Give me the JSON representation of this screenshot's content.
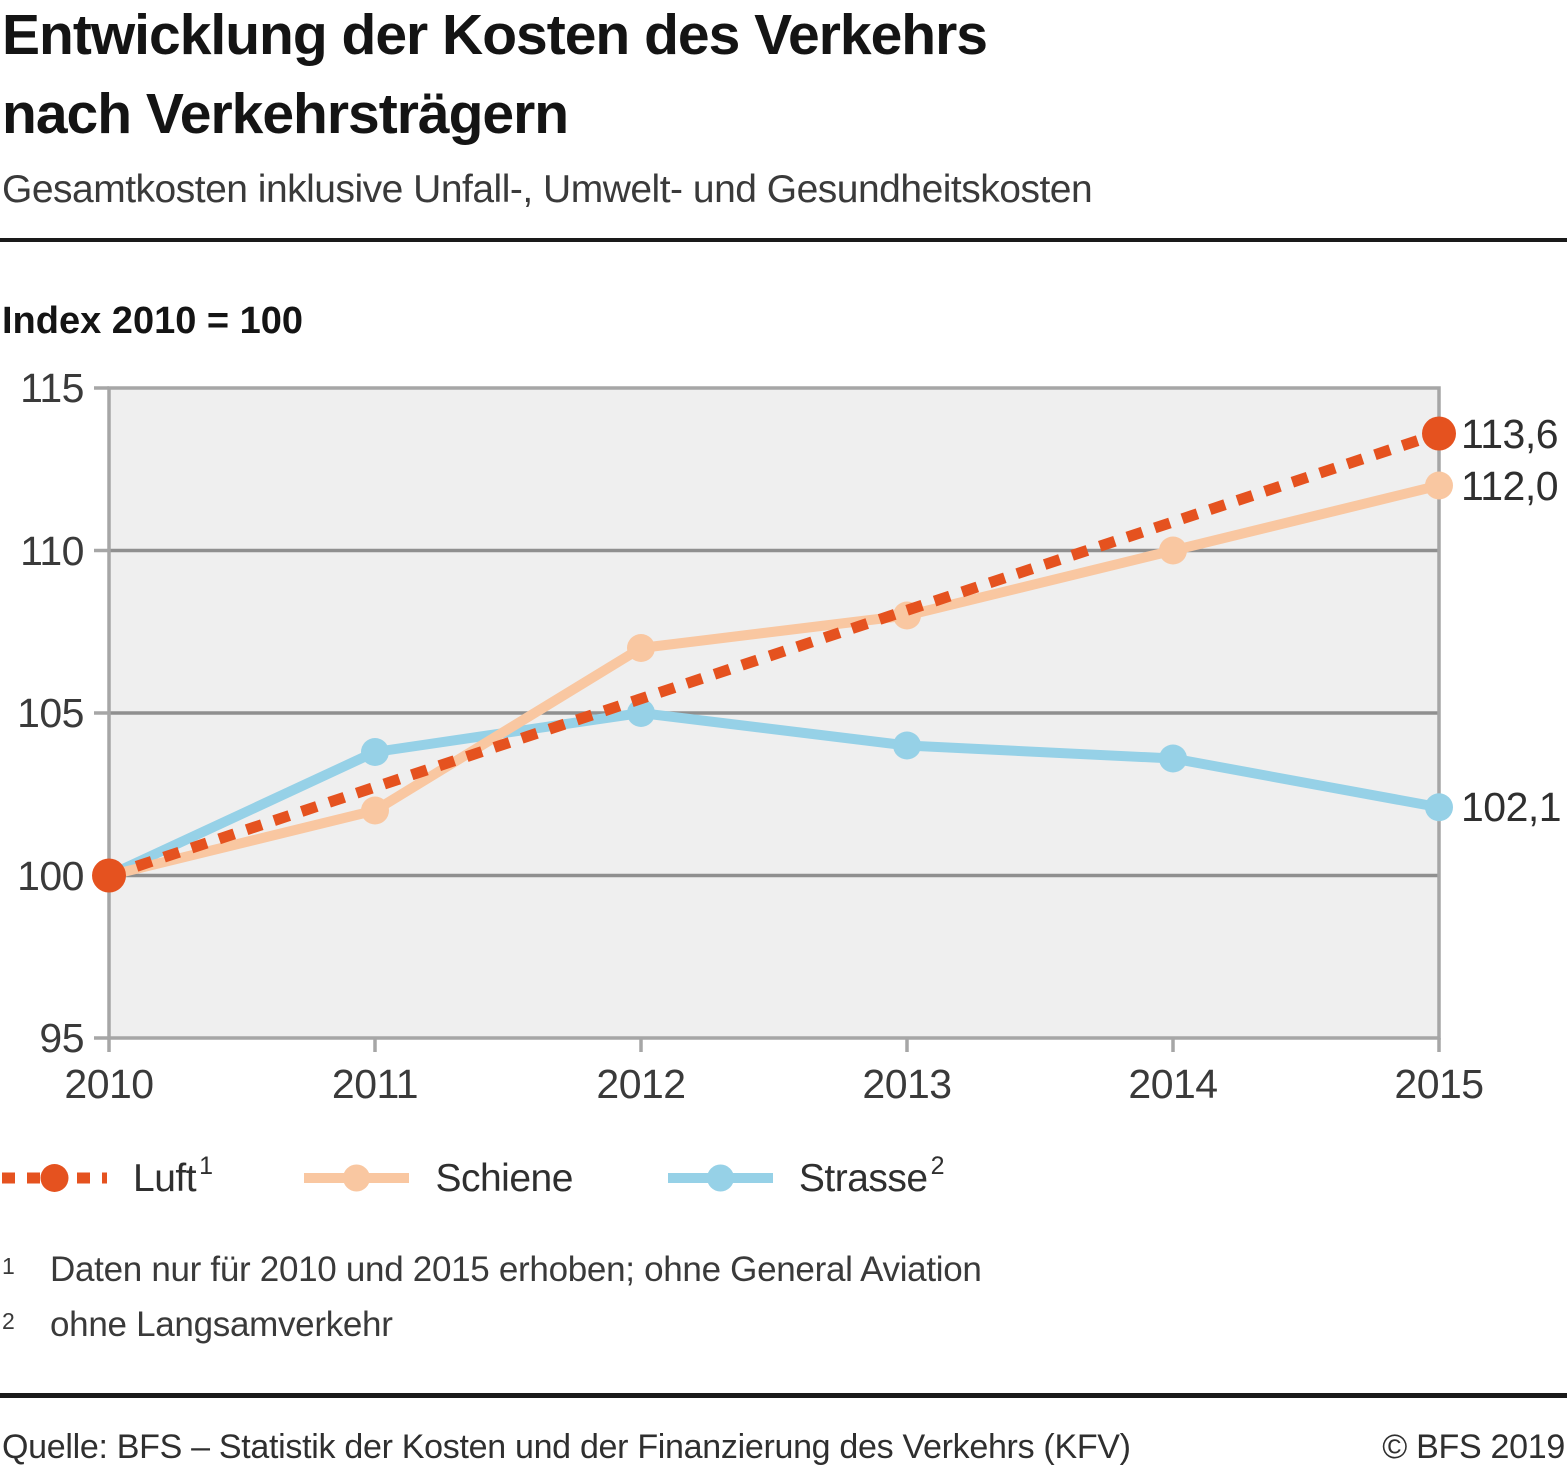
{
  "header": {
    "title": "Entwicklung der Kosten des Verkehrs\nnach Verkehrsträgern",
    "subtitle": "Gesamtkosten inklusive Unfall-, Umwelt- und Gesundheitskosten"
  },
  "chart_data": {
    "type": "line",
    "index_label": "Index 2010 = 100",
    "x_labels": [
      "2010",
      "2011",
      "2012",
      "2013",
      "2014",
      "2015"
    ],
    "ylim": [
      95,
      115
    ],
    "yticks": [
      95,
      100,
      105,
      110,
      115
    ],
    "ytick_labels": [
      "95",
      "100",
      "105",
      "110",
      "115"
    ],
    "grid_values": [
      100,
      105,
      110
    ],
    "grid": true,
    "legend_position": "bottom",
    "plot_bg_color": "#efefef",
    "grid_color": "#8f8f8f",
    "axis_color": "#a6a6a6",
    "series": [
      {
        "name": "Luft",
        "legend_label": "Luft",
        "legend_sup": "1",
        "color": "#e5521f",
        "line_style": "dotted",
        "values": [
          100,
          null,
          null,
          null,
          null,
          113.6
        ],
        "end_label": "113,6"
      },
      {
        "name": "Schiene",
        "legend_label": "Schiene",
        "legend_sup": "",
        "color": "#f9c7a1",
        "line_style": "solid",
        "values": [
          100,
          102,
          107,
          108,
          110,
          112
        ],
        "end_label": "112,0"
      },
      {
        "name": "Strasse",
        "legend_label": "Strasse",
        "legend_sup": "2",
        "color": "#96d1e7",
        "line_style": "solid",
        "values": [
          100,
          103.8,
          105,
          104,
          103.6,
          102.1
        ],
        "end_label": "102,1"
      }
    ]
  },
  "footnotes": [
    {
      "marker": "1",
      "text": "Daten nur für 2010 und 2015 erhoben; ohne General Aviation"
    },
    {
      "marker": "2",
      "text": "ohne Langsamverkehr"
    }
  ],
  "footer": {
    "source": "Quelle: BFS – Statistik der Kosten und der Finanzierung des Verkehrs (KFV)",
    "copyright": "© BFS 2019"
  }
}
